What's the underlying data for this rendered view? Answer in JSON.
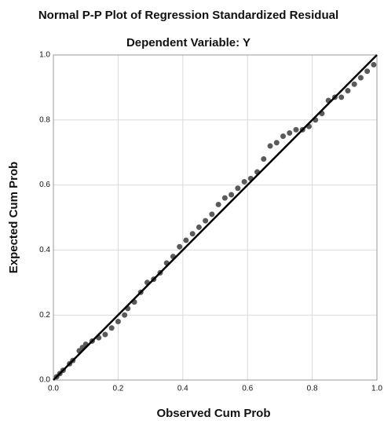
{
  "chart_data": {
    "type": "scatter",
    "title": "Normal P-P Plot of Regression Standardized Residual",
    "subtitle": "Dependent Variable: Y",
    "x_label": "Observed Cum Prob",
    "y_label": "Expected Cum Prob",
    "xlim": [
      0,
      1
    ],
    "ylim": [
      0,
      1
    ],
    "xticks": [
      {
        "value": 0,
        "label": "0.0"
      },
      0.2,
      0.4,
      0.6,
      0.8,
      {
        "value": 1,
        "label": "1.0"
      }
    ],
    "yticks": [
      {
        "value": 0,
        "label": "0.0"
      },
      0.2,
      0.4,
      0.6,
      0.8,
      {
        "value": 1,
        "label": "1.0"
      }
    ],
    "grid": true,
    "reference_line": true,
    "color": "#5a5a5a",
    "line_color": "#000000",
    "x": [
      0.01,
      0.02,
      0.03,
      0.05,
      0.06,
      0.08,
      0.09,
      0.1,
      0.12,
      0.14,
      0.16,
      0.18,
      0.2,
      0.22,
      0.23,
      0.25,
      0.27,
      0.29,
      0.31,
      0.33,
      0.35,
      0.37,
      0.39,
      0.41,
      0.43,
      0.45,
      0.47,
      0.49,
      0.51,
      0.53,
      0.55,
      0.57,
      0.59,
      0.61,
      0.63,
      0.65,
      0.67,
      0.69,
      0.71,
      0.73,
      0.75,
      0.77,
      0.79,
      0.81,
      0.83,
      0.85,
      0.87,
      0.89,
      0.91,
      0.93,
      0.95,
      0.97,
      0.99
    ],
    "values": [
      0.01,
      0.02,
      0.03,
      0.05,
      0.06,
      0.09,
      0.1,
      0.11,
      0.12,
      0.13,
      0.14,
      0.16,
      0.18,
      0.2,
      0.22,
      0.24,
      0.27,
      0.3,
      0.31,
      0.33,
      0.36,
      0.38,
      0.41,
      0.43,
      0.45,
      0.47,
      0.49,
      0.51,
      0.54,
      0.56,
      0.57,
      0.59,
      0.61,
      0.62,
      0.64,
      0.68,
      0.72,
      0.73,
      0.75,
      0.76,
      0.77,
      0.77,
      0.78,
      0.8,
      0.82,
      0.86,
      0.87,
      0.87,
      0.89,
      0.91,
      0.93,
      0.95,
      0.97
    ]
  }
}
